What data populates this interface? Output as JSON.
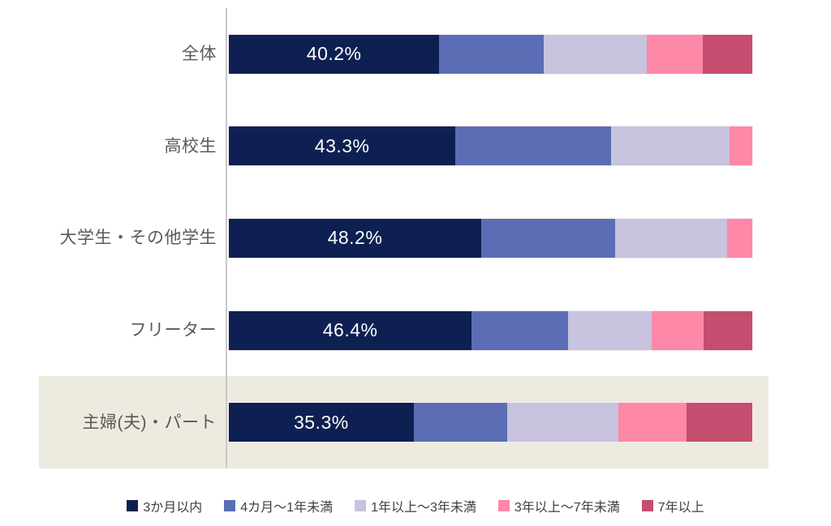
{
  "chart_data": {
    "type": "bar",
    "orientation": "horizontal-stacked",
    "unit": "%",
    "title": "",
    "xlabel": "",
    "ylabel": "",
    "xlim": [
      0,
      100
    ],
    "grid": false,
    "legend_position": "bottom",
    "categories": [
      "全体",
      "高校生",
      "大学生・その他学生",
      "フリーター",
      "主婦(夫)・パート"
    ],
    "series": [
      {
        "name": "3か月以内",
        "color": "#0e2052",
        "values": [
          40.2,
          43.3,
          48.2,
          46.4,
          35.3
        ]
      },
      {
        "name": "4カ月〜1年未満",
        "color": "#5b6eb5",
        "values": [
          19.9,
          29.7,
          25.6,
          18.4,
          17.9
        ]
      },
      {
        "name": "1年以上〜3年未満",
        "color": "#c8c3de",
        "values": [
          19.8,
          22.7,
          21.4,
          16.0,
          21.2
        ]
      },
      {
        "name": "3年以上〜7年未満",
        "color": "#fd88a8",
        "values": [
          10.6,
          4.3,
          4.8,
          9.9,
          13.0
        ]
      },
      {
        "name": "7年以上",
        "color": "#c54e70",
        "values": [
          9.5,
          0.0,
          0.0,
          9.3,
          12.6
        ]
      }
    ],
    "value_labels": [
      "40.2%",
      "43.3%",
      "48.2%",
      "46.4%",
      "35.3%"
    ],
    "value_label_series": "3か月以内",
    "highlighted_category": "主婦(夫)・パート",
    "highlight_color": "#edeadf"
  },
  "styles": {
    "axis_line_color": "#c9c9c9",
    "category_label_color": "#595959",
    "legend_text_color": "#3f3f3f",
    "value_label_color": "#ffffff",
    "background": "#ffffff"
  }
}
